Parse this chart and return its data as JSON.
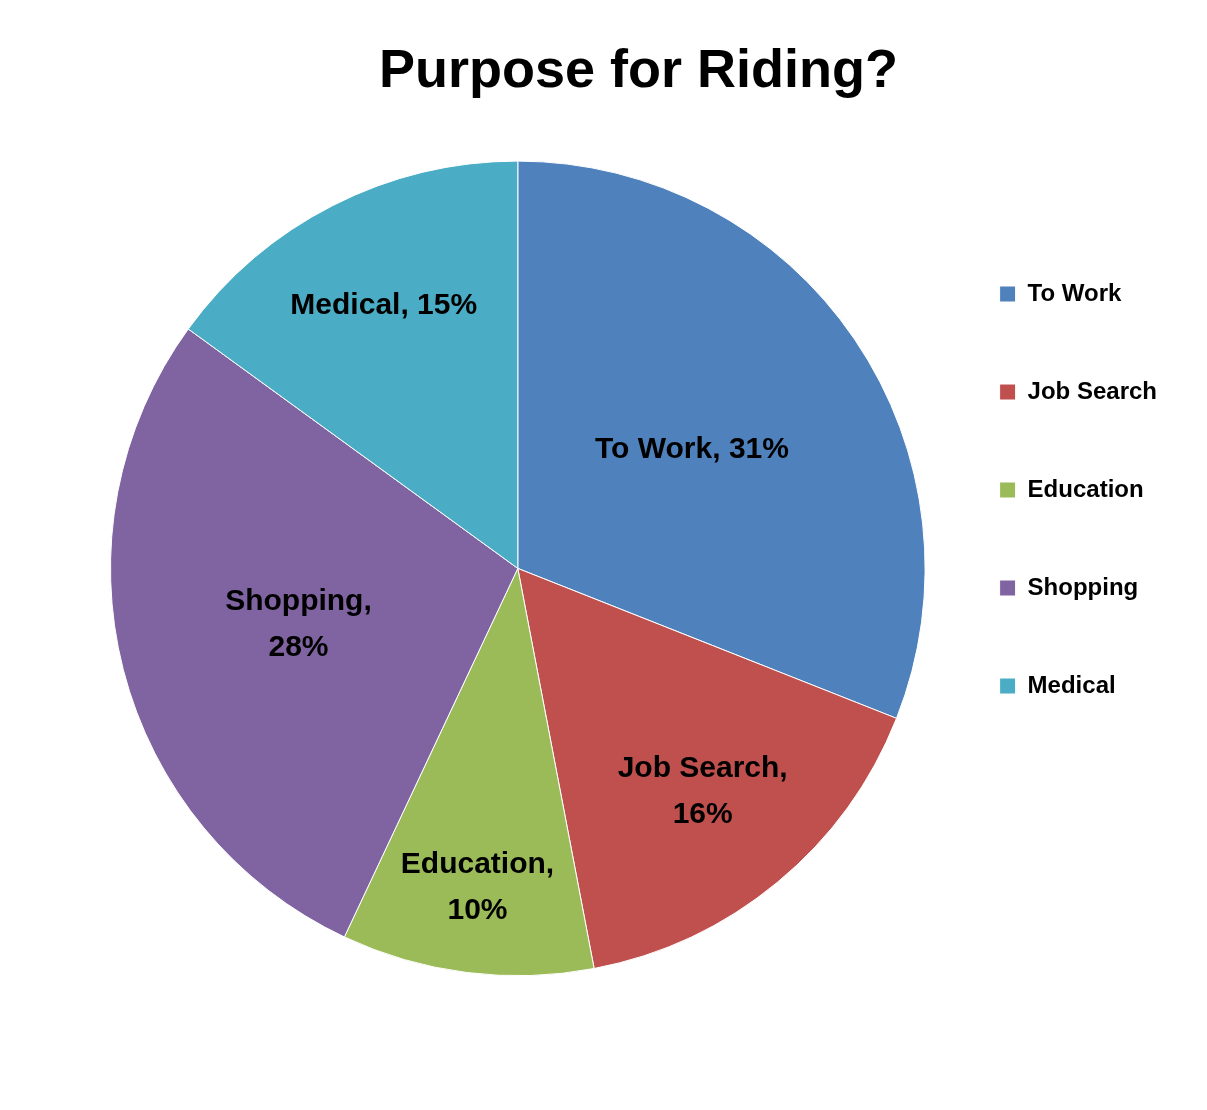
{
  "chart_data": {
    "type": "pie",
    "title": "Purpose for Riding?",
    "categories": [
      "To Work",
      "Job Search",
      "Education",
      "Shopping",
      "Medical"
    ],
    "values": [
      31,
      16,
      10,
      28,
      15
    ],
    "value_labels": [
      "To Work, 31%",
      "Job Search,\n16%",
      "Education,\n10%",
      "Shopping,\n28%",
      "Medical, 15%"
    ],
    "colors": [
      "#4f81bd",
      "#c0504d",
      "#9bbb59",
      "#8064a2",
      "#4bacc6"
    ],
    "legend": "right"
  }
}
